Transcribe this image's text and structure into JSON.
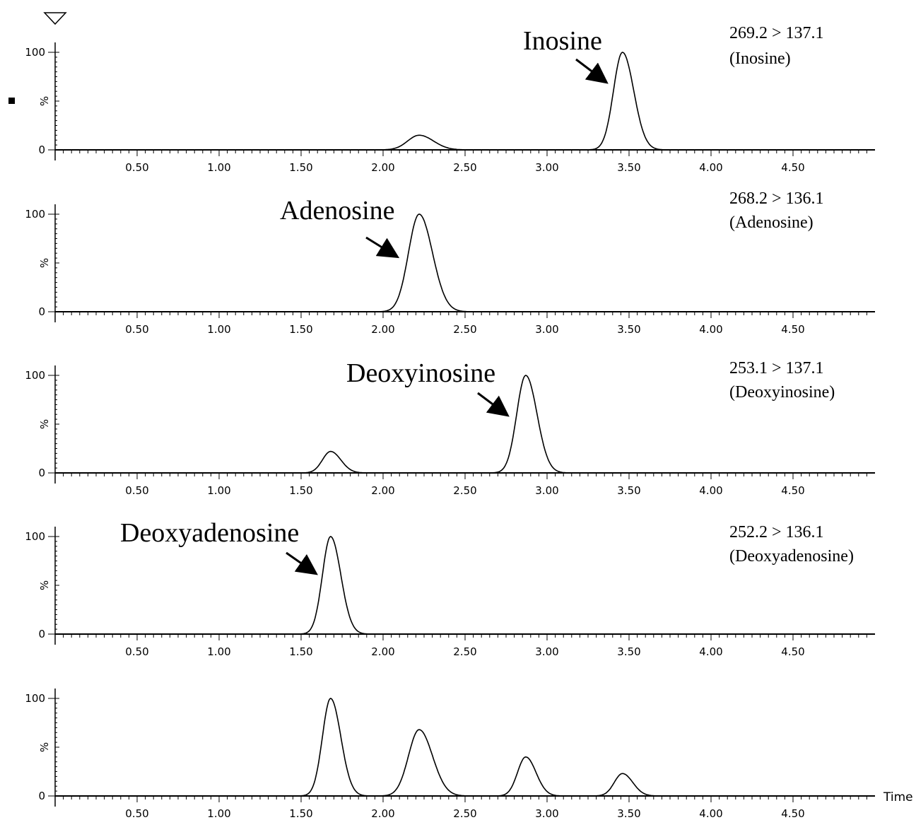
{
  "figure": {
    "x_axis_label": "Time",
    "y_axis_unit": "%"
  },
  "chart_data": [
    {
      "type": "line",
      "transition": "269.2 > 137.1",
      "compound": "(Inosine)",
      "peak_label": "Inosine",
      "xlim": [
        0,
        5.0
      ],
      "ylim": [
        0,
        100
      ],
      "y_ticks": [
        "0",
        "100"
      ],
      "x_ticks": [
        "0.50",
        "1.00",
        "1.50",
        "2.00",
        "2.50",
        "3.00",
        "3.50",
        "4.00",
        "4.50"
      ],
      "peaks": [
        {
          "x": 2.22,
          "y": 15,
          "w": 0.07
        },
        {
          "x": 3.46,
          "y": 100,
          "w": 0.055
        }
      ]
    },
    {
      "type": "line",
      "transition": "268.2 > 136.1",
      "compound": "(Adenosine)",
      "peak_label": "Adenosine",
      "xlim": [
        0,
        5.0
      ],
      "ylim": [
        0,
        100
      ],
      "y_ticks": [
        "0",
        "100"
      ],
      "x_ticks": [
        "0.50",
        "1.00",
        "1.50",
        "2.00",
        "2.50",
        "3.00",
        "3.50",
        "4.00",
        "4.50"
      ],
      "peaks": [
        {
          "x": 2.22,
          "y": 100,
          "w": 0.065
        }
      ]
    },
    {
      "type": "line",
      "transition": "253.1 > 137.1",
      "compound": "(Deoxyinosine)",
      "peak_label": "Deoxyinosine",
      "xlim": [
        0,
        5.0
      ],
      "ylim": [
        0,
        100
      ],
      "y_ticks": [
        "0",
        "100"
      ],
      "x_ticks": [
        "0.50",
        "1.00",
        "1.50",
        "2.00",
        "2.50",
        "3.00",
        "3.50",
        "4.00",
        "4.50"
      ],
      "peaks": [
        {
          "x": 1.68,
          "y": 22,
          "w": 0.05
        },
        {
          "x": 2.87,
          "y": 100,
          "w": 0.055
        }
      ]
    },
    {
      "type": "line",
      "transition": "252.2 > 136.1",
      "compound": "(Deoxyadenosine)",
      "peak_label": "Deoxyadenosine",
      "xlim": [
        0,
        5.0
      ],
      "ylim": [
        0,
        100
      ],
      "y_ticks": [
        "0",
        "100"
      ],
      "x_ticks": [
        "0.50",
        "1.00",
        "1.50",
        "2.00",
        "2.50",
        "3.00",
        "3.50",
        "4.00",
        "4.50"
      ],
      "peaks": [
        {
          "x": 1.68,
          "y": 100,
          "w": 0.05
        }
      ]
    },
    {
      "type": "line",
      "transition": "",
      "compound": "",
      "peak_label": "",
      "xlim": [
        0,
        5.0
      ],
      "ylim": [
        0,
        100
      ],
      "y_ticks": [
        "0",
        "100"
      ],
      "x_ticks": [
        "0.50",
        "1.00",
        "1.50",
        "2.00",
        "2.50",
        "3.00",
        "3.50",
        "4.00",
        "4.50"
      ],
      "peaks": [
        {
          "x": 1.68,
          "y": 100,
          "w": 0.05
        },
        {
          "x": 2.22,
          "y": 68,
          "w": 0.065
        },
        {
          "x": 2.87,
          "y": 40,
          "w": 0.05
        },
        {
          "x": 3.46,
          "y": 23,
          "w": 0.05
        }
      ]
    }
  ]
}
